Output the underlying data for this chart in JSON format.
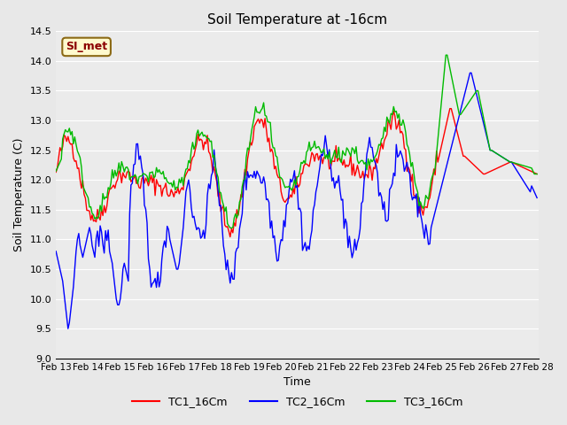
{
  "title": "Soil Temperature at -16cm",
  "xlabel": "Time",
  "ylabel": "Soil Temperature (C)",
  "ylim": [
    9.0,
    14.5
  ],
  "yticks": [
    9.0,
    9.5,
    10.0,
    10.5,
    11.0,
    11.5,
    12.0,
    12.5,
    13.0,
    13.5,
    14.0,
    14.5
  ],
  "annotation_text": "SI_met",
  "annotation_color": "#8B0000",
  "annotation_bg": "#FFFACD",
  "annotation_border": "#8B6914",
  "line_colors": {
    "TC1": "#FF0000",
    "TC2": "#0000FF",
    "TC3": "#00BB00"
  },
  "legend_labels": [
    "TC1_16Cm",
    "TC2_16Cm",
    "TC3_16Cm"
  ],
  "bg_color": "#E8E8E8",
  "plot_bg": "#F0F0F0",
  "grid_color": "#FFFFFF",
  "n_points": 360,
  "x_start": 13,
  "x_end": 28,
  "xtick_labels": [
    "Feb 13",
    "Feb 14",
    "Feb 15",
    "Feb 16",
    "Feb 17",
    "Feb 18",
    "Feb 19",
    "Feb 20",
    "Feb 21",
    "Feb 22",
    "Feb 23",
    "Feb 24",
    "Feb 25",
    "Feb 26",
    "Feb 27",
    "Feb 28"
  ],
  "xtick_positions": [
    0,
    24,
    48,
    72,
    96,
    120,
    144,
    168,
    192,
    216,
    240,
    264,
    288,
    312,
    336,
    360
  ]
}
